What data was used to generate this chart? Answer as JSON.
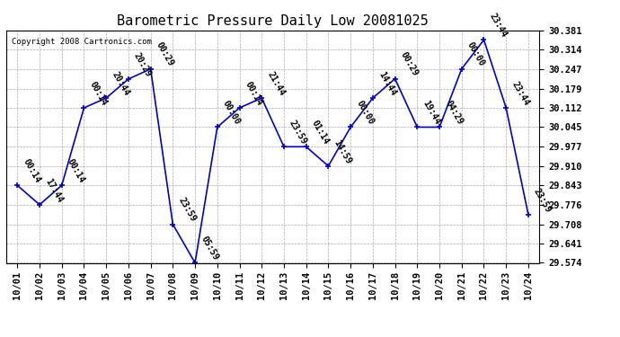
{
  "title": "Barometric Pressure Daily Low 20081025",
  "copyright": "Copyright 2008 Cartronics.com",
  "dates": [
    "10/01",
    "10/02",
    "10/03",
    "10/04",
    "10/05",
    "10/06",
    "10/07",
    "10/08",
    "10/09",
    "10/10",
    "10/11",
    "10/12",
    "10/13",
    "10/14",
    "10/15",
    "10/16",
    "10/17",
    "10/18",
    "10/19",
    "10/20",
    "10/21",
    "10/22",
    "10/23",
    "10/24"
  ],
  "x_indices": [
    0,
    1,
    2,
    3,
    4,
    5,
    6,
    7,
    8,
    9,
    10,
    11,
    12,
    13,
    14,
    15,
    16,
    17,
    18,
    19,
    20,
    21,
    22,
    23
  ],
  "values": [
    29.843,
    29.776,
    29.843,
    30.112,
    30.146,
    30.212,
    30.247,
    29.708,
    29.574,
    30.045,
    30.112,
    30.146,
    29.977,
    29.977,
    29.91,
    30.045,
    30.146,
    30.213,
    30.045,
    30.045,
    30.247,
    30.348,
    30.112,
    29.741
  ],
  "labels": [
    "00:14",
    "17:44",
    "00:14",
    "00:14",
    "20:44",
    "20:29",
    "00:29",
    "23:59",
    "05:59",
    "00:00",
    "00:14",
    "21:44",
    "23:59",
    "01:14",
    "14:59",
    "00:00",
    "14:44",
    "00:29",
    "19:44",
    "04:29",
    "00:00",
    "23:44",
    "23:44",
    "23:59"
  ],
  "ylim_min": 29.574,
  "ylim_max": 30.381,
  "yticks": [
    29.574,
    29.641,
    29.708,
    29.776,
    29.843,
    29.91,
    29.977,
    30.045,
    30.112,
    30.179,
    30.247,
    30.314,
    30.381
  ],
  "line_color": "#0000cc",
  "marker_color": "#0000cc",
  "bg_color": "#ffffff",
  "grid_color": "#aaaaaa",
  "title_fontsize": 11,
  "label_fontsize": 7,
  "tick_fontsize": 7.5,
  "copyright_fontsize": 6.5
}
